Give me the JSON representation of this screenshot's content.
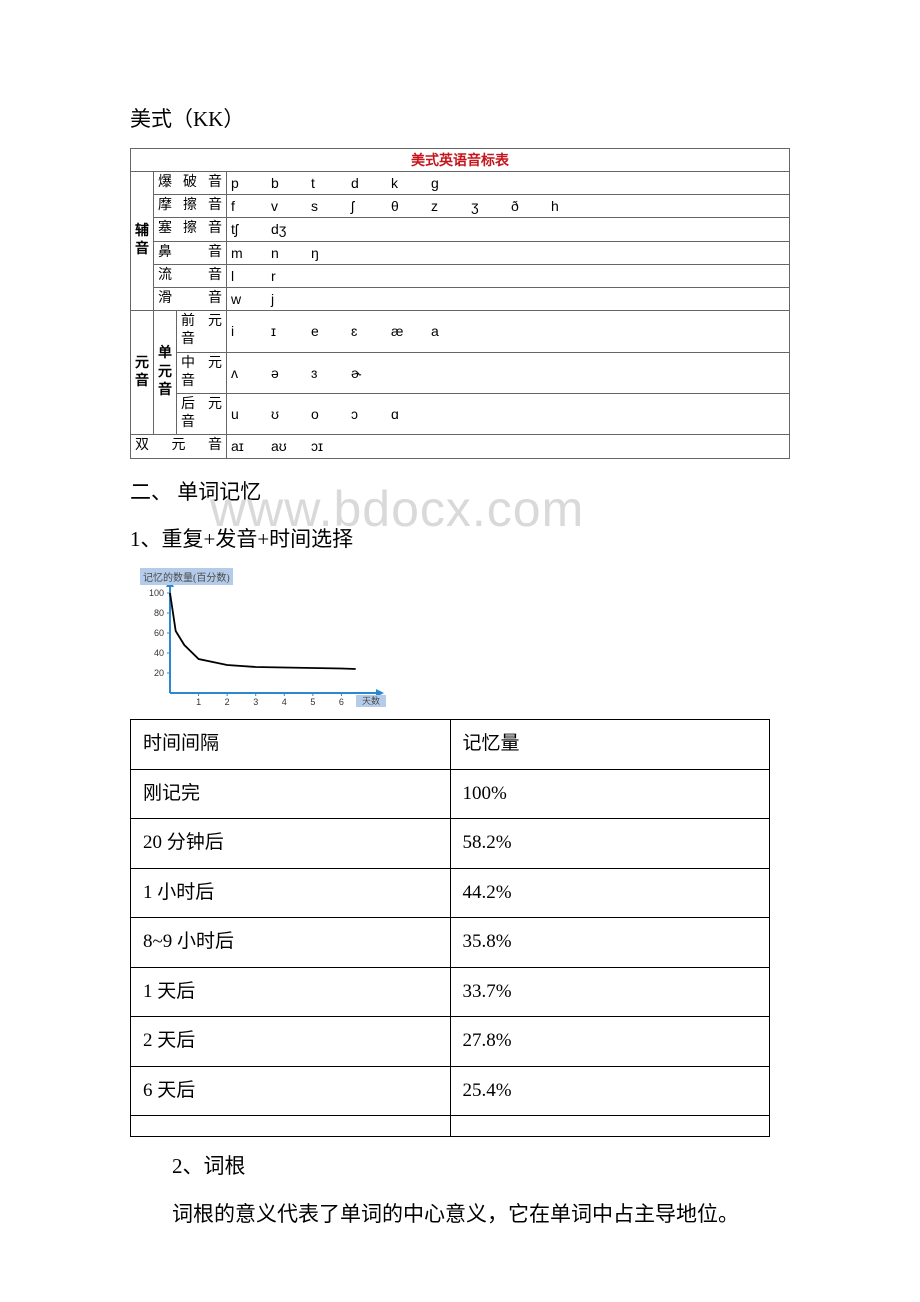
{
  "heading_kk": "美式（KK）",
  "phon": {
    "title": "美式英语音标表",
    "consonant_label": "辅音",
    "vowel_label": "元音",
    "rows": [
      {
        "cat": "爆破音",
        "cells": [
          "p",
          "b",
          "t",
          "d",
          "k",
          "g"
        ]
      },
      {
        "cat": "摩擦音",
        "cells": [
          "f",
          "v",
          "s",
          "ʃ",
          "θ",
          "z",
          "ʒ",
          "ð",
          "h"
        ]
      },
      {
        "cat": "塞擦音",
        "cells": [
          "tʃ",
          "dʒ"
        ]
      },
      {
        "cat": "鼻 音",
        "cells": [
          "m",
          "n",
          "ŋ"
        ]
      },
      {
        "cat": "流 音",
        "cells": [
          "l",
          "r"
        ]
      },
      {
        "cat": "滑 音",
        "cells": [
          "w",
          "j"
        ]
      }
    ],
    "vowel_sub_label": "单元音",
    "vowel_rows": [
      {
        "cat": "前元音",
        "cells": [
          "i",
          "ɪ",
          "e",
          "ɛ",
          "æ",
          "a"
        ]
      },
      {
        "cat": "中元音",
        "cells": [
          "ʌ",
          "ə",
          "ɜ",
          "ɚ"
        ]
      },
      {
        "cat": "后元音",
        "cells": [
          "u",
          "ʊ",
          "o",
          "ɔ",
          "ɑ"
        ]
      }
    ],
    "diph_label": "双元音",
    "diph_cells": [
      "aɪ",
      "aʊ",
      "ɔɪ"
    ]
  },
  "section2": "二、 单词记忆",
  "section2_1": "1、重复+发音+时间选择",
  "chart": {
    "label": "记忆的数量(百分数)",
    "x_label": "天数",
    "ylim": [
      0,
      100
    ],
    "xlim": [
      0,
      7
    ],
    "y_ticks": [
      20,
      40,
      60,
      80,
      100
    ],
    "y_tick_labels": [
      "20",
      "40",
      "60",
      "80",
      "100"
    ],
    "x_ticks": [
      1,
      2,
      3,
      4,
      5,
      6
    ],
    "curve_points": [
      [
        0,
        100
      ],
      [
        0.2,
        62
      ],
      [
        0.5,
        48
      ],
      [
        1,
        34
      ],
      [
        2,
        28
      ],
      [
        3,
        26
      ],
      [
        4,
        25.5
      ],
      [
        5,
        25
      ],
      [
        6,
        24.5
      ],
      [
        6.5,
        24
      ]
    ],
    "axis_color": "#2a88d0",
    "curve_color": "#000000",
    "tick_fontsize": 9
  },
  "mem_table": {
    "header": [
      "时间间隔",
      "记忆量"
    ],
    "rows": [
      [
        "刚记完",
        "100%"
      ],
      [
        "20 分钟后",
        "58.2%"
      ],
      [
        "1 小时后",
        "44.2%"
      ],
      [
        "8~9 小时后",
        "35.8%"
      ],
      [
        "1 天后",
        "33.7%"
      ],
      [
        "2 天后",
        "27.8%"
      ],
      [
        "6 天后",
        "25.4%"
      ],
      [
        "",
        ""
      ]
    ]
  },
  "section2_2": "2、词根",
  "section2_2_desc": "词根的意义代表了单词的中心意义，它在单词中占主导地位。",
  "watermark": "www.bdocx.com"
}
